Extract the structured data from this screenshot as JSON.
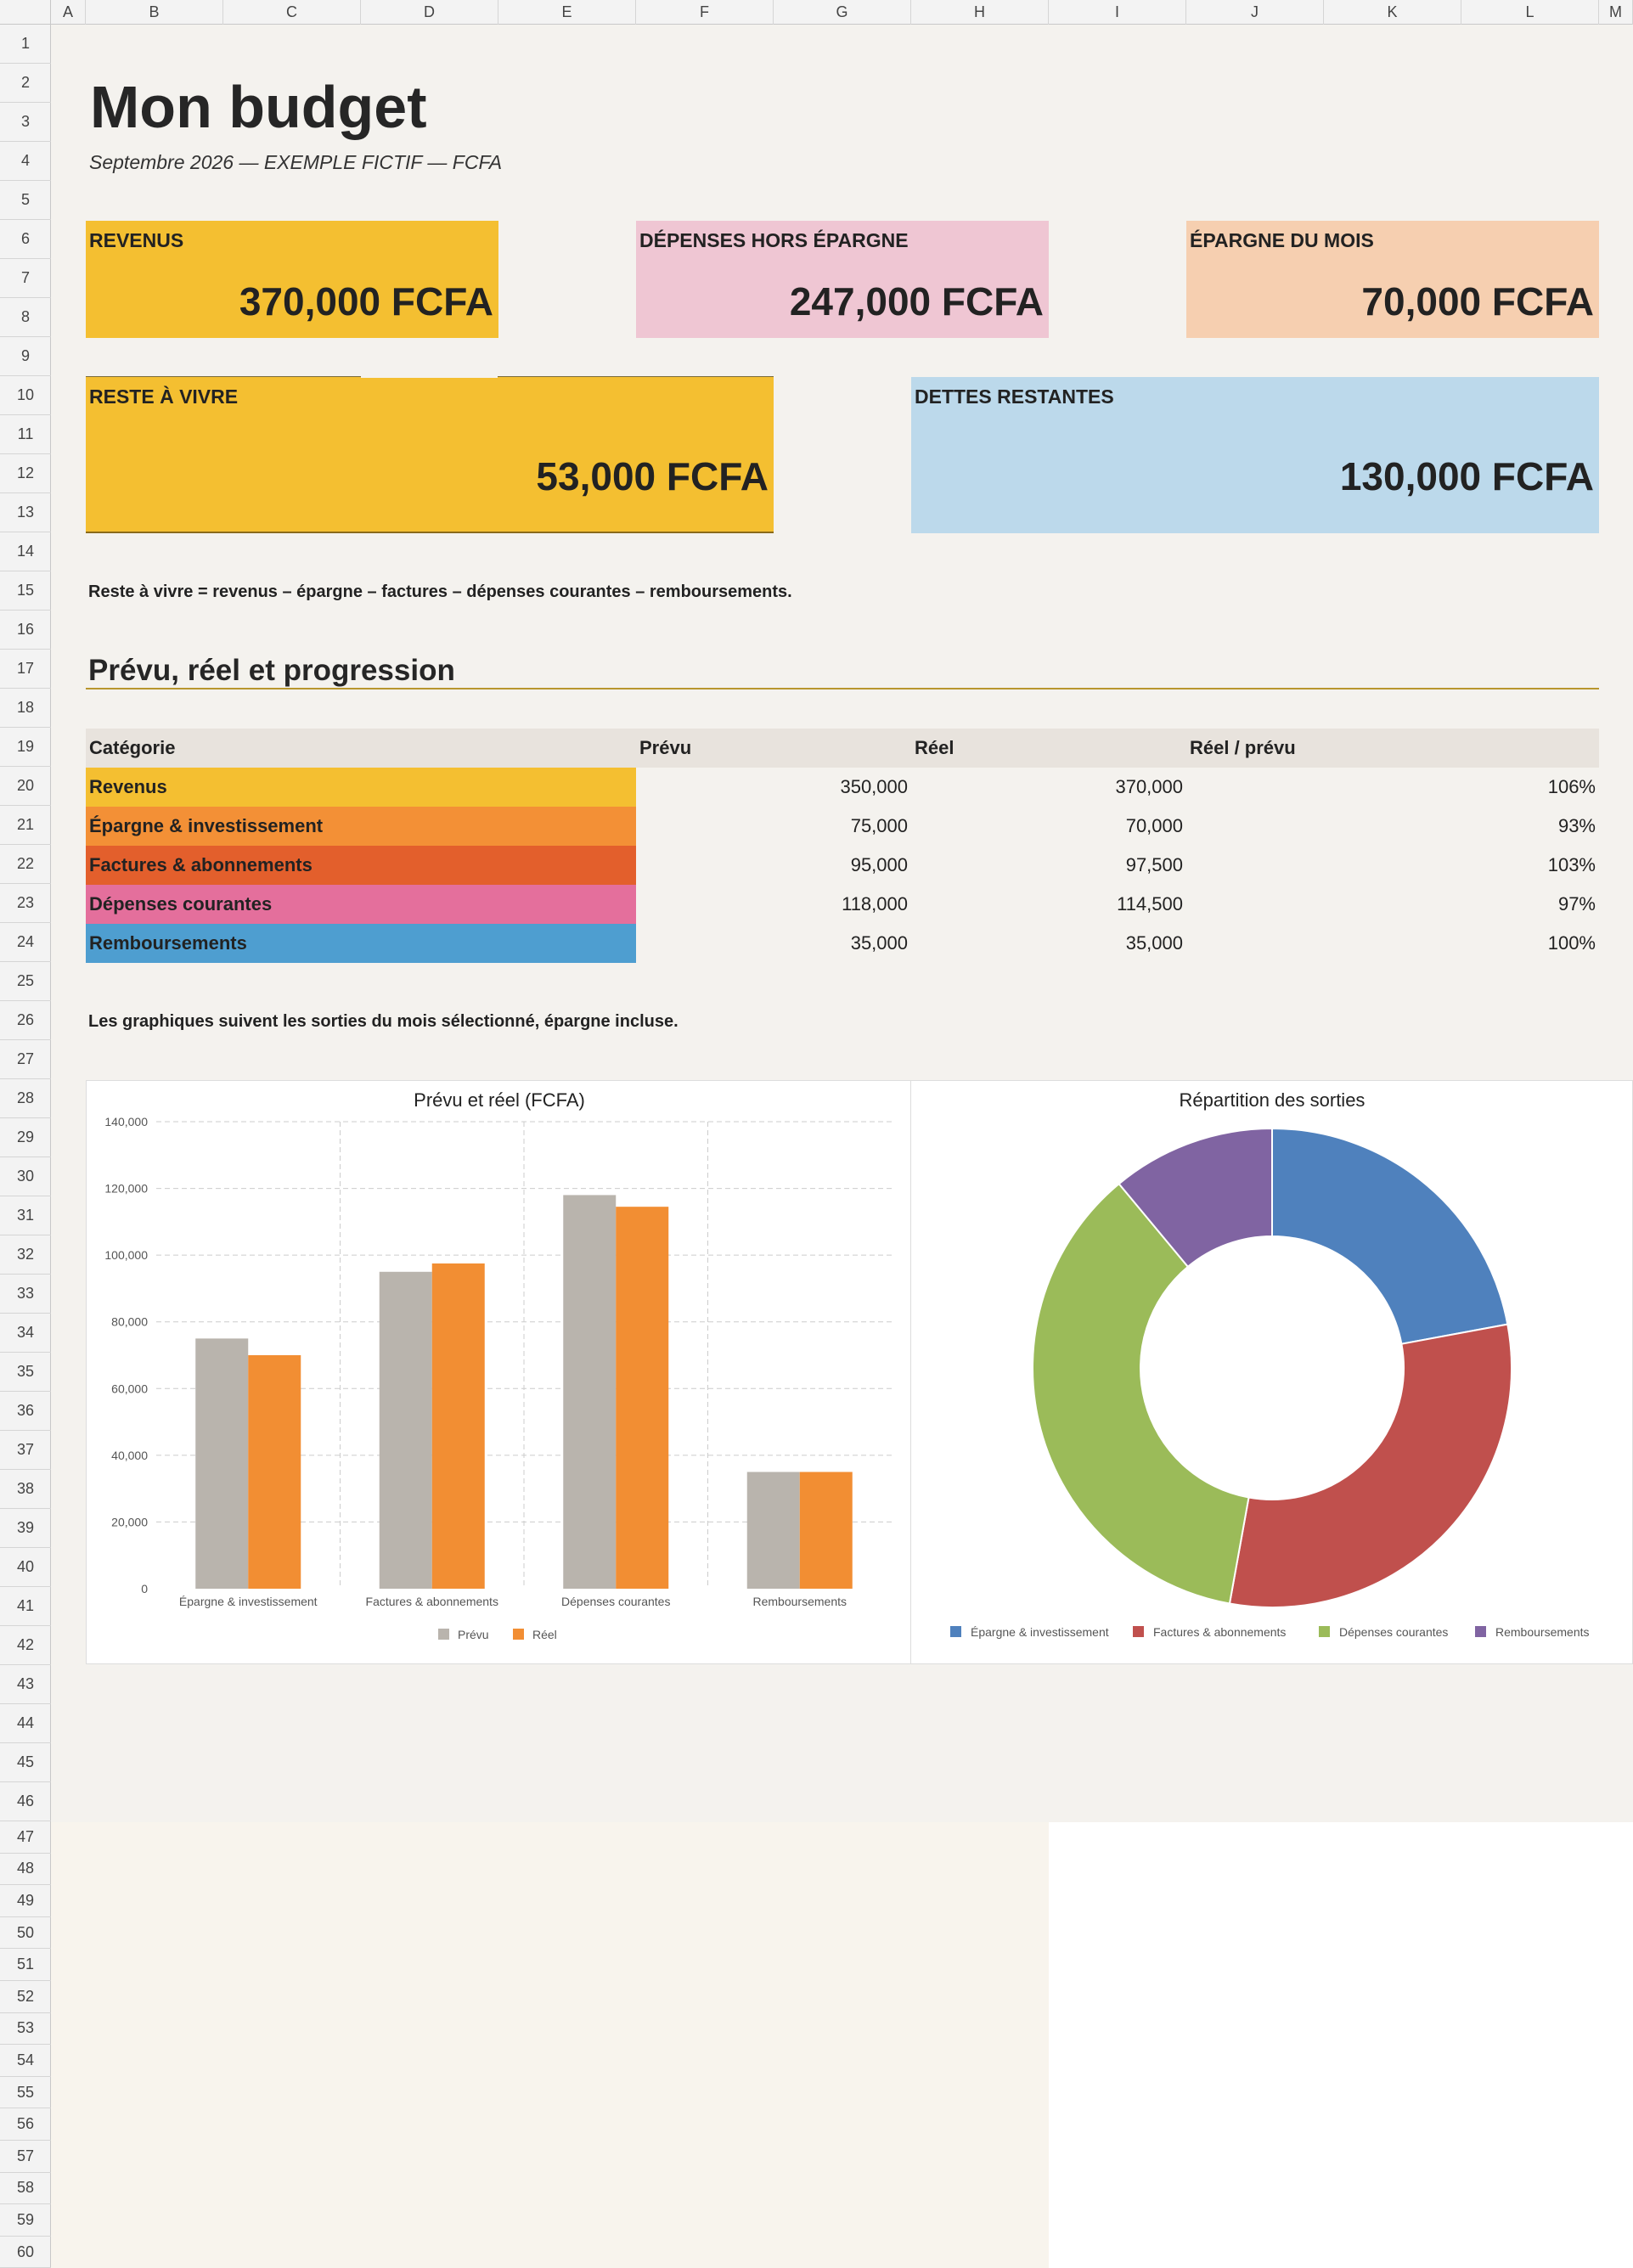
{
  "spreadsheet": {
    "columns": [
      "A",
      "B",
      "C",
      "D",
      "E",
      "F",
      "G",
      "H",
      "I",
      "J",
      "K",
      "L",
      "M"
    ],
    "rows": [
      "1",
      "2",
      "3",
      "4",
      "5",
      "6",
      "7",
      "8",
      "9",
      "10",
      "11",
      "12",
      "13",
      "14",
      "15",
      "16",
      "17",
      "18",
      "19",
      "20",
      "21",
      "22",
      "23",
      "24",
      "25",
      "26",
      "27",
      "28",
      "29",
      "30",
      "31",
      "32",
      "33",
      "34",
      "35",
      "36",
      "37",
      "38",
      "39",
      "40",
      "41",
      "42",
      "43",
      "44",
      "45",
      "46",
      "47",
      "48",
      "49",
      "50",
      "51",
      "52",
      "53",
      "54",
      "55",
      "56",
      "57",
      "58",
      "59",
      "60"
    ]
  },
  "header": {
    "title": "Mon budget",
    "subtitle": "Septembre 2026 — EXEMPLE FICTIF — FCFA"
  },
  "cards": {
    "revenus": {
      "label": "REVENUS",
      "value": "370,000 FCFA",
      "color": "#f4bf31"
    },
    "depenses": {
      "label": "DÉPENSES HORS ÉPARGNE",
      "value": "247,000 FCFA",
      "color": "#efc6d3"
    },
    "epargne": {
      "label": "ÉPARGNE DU MOIS",
      "value": "70,000 FCFA",
      "color": "#f6cfb0"
    },
    "reste": {
      "label": "RESTE À VIVRE",
      "value": "53,000 FCFA",
      "color": "#f4bf31"
    },
    "dettes": {
      "label": "DETTES RESTANTES",
      "value": "130,000 FCFA",
      "color": "#bcd9eb"
    }
  },
  "formula_note": "Reste à vivre = revenus – épargne – factures – dépenses courantes – remboursements.",
  "section_title": "Prévu, réel et progression",
  "table": {
    "headers": {
      "category": "Catégorie",
      "planned": "Prévu",
      "actual": "Réel",
      "ratio": "Réel / prévu"
    },
    "rows": [
      {
        "category": "Revenus",
        "planned": "350,000",
        "actual": "370,000",
        "ratio": "106%",
        "color": "#f4bf31"
      },
      {
        "category": "Épargne & investissement",
        "planned": "75,000",
        "actual": "70,000",
        "ratio": "93%",
        "color": "#f39036"
      },
      {
        "category": "Factures & abonnements",
        "planned": "95,000",
        "actual": "97,500",
        "ratio": "103%",
        "color": "#e35f2c"
      },
      {
        "category": "Dépenses courantes",
        "planned": "118,000",
        "actual": "114,500",
        "ratio": "97%",
        "color": "#e46f9c"
      },
      {
        "category": "Remboursements",
        "planned": "35,000",
        "actual": "35,000",
        "ratio": "100%",
        "color": "#4e9ed0"
      }
    ]
  },
  "charts_note": "Les graphiques suivent les sorties du mois sélectionné, épargne incluse.",
  "chart_data": [
    {
      "type": "bar",
      "title": "Prévu et réel (FCFA)",
      "categories": [
        "Épargne & investissement",
        "Factures & abonnements",
        "Dépenses courantes",
        "Remboursements"
      ],
      "series": [
        {
          "name": "Prévu",
          "values": [
            75000,
            95000,
            118000,
            35000
          ],
          "color": "#b9b4ad"
        },
        {
          "name": "Réel",
          "values": [
            70000,
            97500,
            114500,
            35000
          ],
          "color": "#f28e33"
        }
      ],
      "ylim": [
        0,
        140000
      ],
      "yticks": [
        "0",
        "20,000",
        "40,000",
        "60,000",
        "80,000",
        "100,000",
        "120,000",
        "140,000"
      ],
      "grid": true,
      "legend": "bottom"
    },
    {
      "type": "pie",
      "title": "Répartition des sorties",
      "labels": [
        "Épargne & investissement",
        "Factures & abonnements",
        "Dépenses courantes",
        "Remboursements"
      ],
      "values": [
        70000,
        97500,
        114500,
        35000
      ],
      "colors": [
        "#4f81bd",
        "#c0504d",
        "#9bbb59",
        "#8064a2"
      ],
      "donut": true,
      "legend": "bottom"
    }
  ]
}
